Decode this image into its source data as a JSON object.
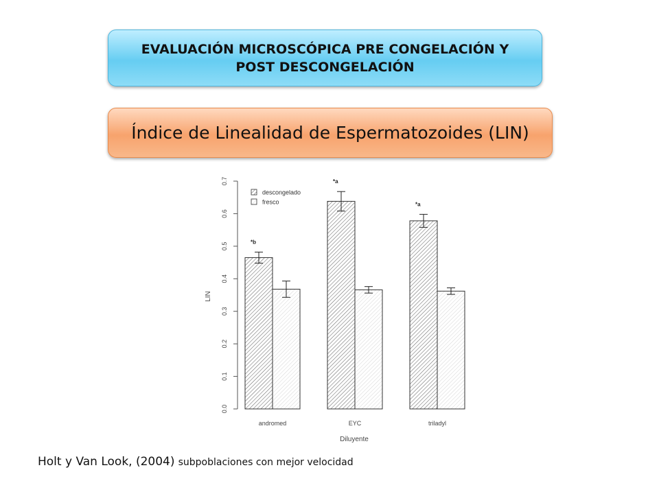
{
  "header": {
    "title_line1": "EVALUACIÓN MICROSCÓPICA PRE CONGELACIÓN Y",
    "title_line2": "POST DESCONGELACIÓN",
    "subtitle": "Índice de Linealidad de Espermatozoides (LIN)"
  },
  "citation": {
    "authors": "Holt y Van Look, (2004)",
    "note": "subpoblaciones con mejor velocidad"
  },
  "colors": {
    "banner_blue": "#66cdf2",
    "banner_orange": "#f7a36d",
    "axis": "#555555"
  },
  "chart_data": {
    "type": "bar",
    "xlabel": "Diluyente",
    "ylabel": "LIN",
    "ylim": [
      0,
      0.7
    ],
    "yticks": [
      "0.0",
      "0.1",
      "0.2",
      "0.3",
      "0.4",
      "0.5",
      "0.6",
      "0.7"
    ],
    "categories": [
      "andromed",
      "EYC",
      "triladyl"
    ],
    "series": [
      {
        "name": "descongelado",
        "pattern": "dense-hatch",
        "values": [
          0.465,
          0.638,
          0.578
        ],
        "errors": [
          0.017,
          0.03,
          0.02
        ]
      },
      {
        "name": "fresco",
        "pattern": "light-hatch",
        "values": [
          0.368,
          0.366,
          0.362
        ],
        "errors": [
          0.025,
          0.01,
          0.01
        ]
      }
    ],
    "annotations": [
      "*b",
      "*a",
      "*a"
    ],
    "legend_position": "top-left",
    "grid": false
  }
}
